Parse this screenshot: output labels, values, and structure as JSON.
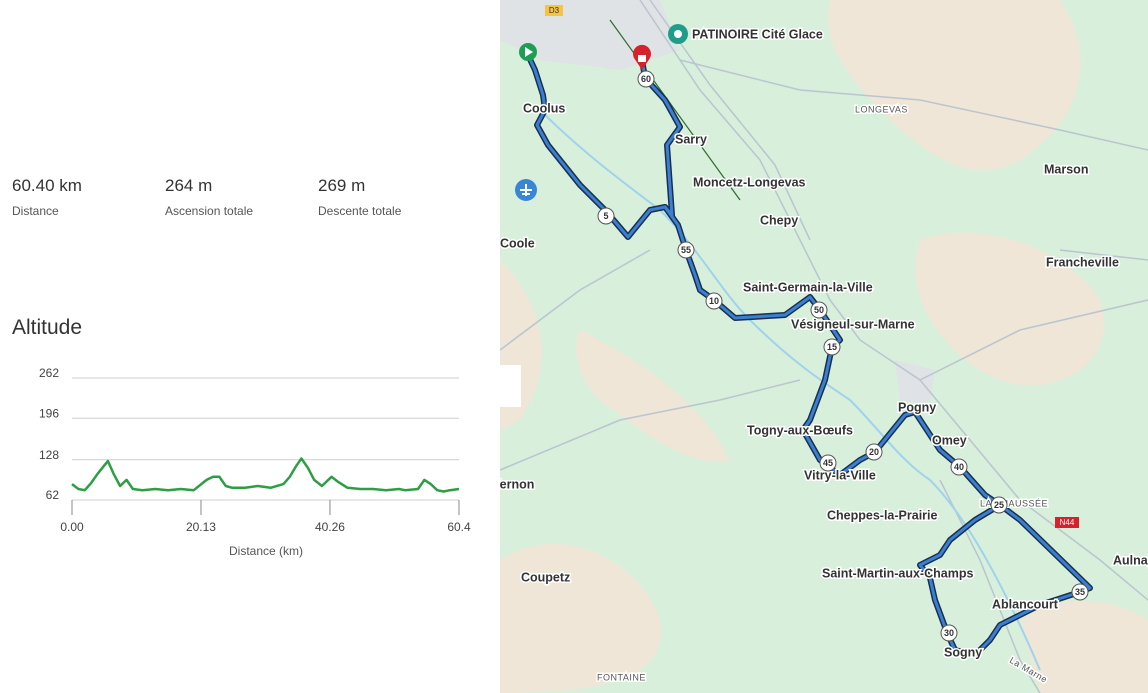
{
  "stats": [
    {
      "value": "60.40 km",
      "label": "Distance"
    },
    {
      "value": "264 m",
      "label": "Ascension totale"
    },
    {
      "value": "269 m",
      "label": "Descente totale"
    }
  ],
  "chart_data": {
    "type": "line",
    "title": "Altitude",
    "x_label": "Distance (km)",
    "color": "#2e9e44",
    "x": [
      0,
      1,
      2,
      3,
      4,
      5,
      5.6,
      6.5,
      7.5,
      8.5,
      9.5,
      11,
      13,
      15,
      17,
      19,
      21,
      22,
      23,
      24,
      25,
      27,
      29,
      31,
      33,
      34,
      35,
      35.8,
      36.8,
      37.8,
      39,
      40.5,
      41.5,
      43,
      45,
      47,
      49,
      51,
      52,
      54,
      55,
      56,
      57,
      58,
      59,
      60.4
    ],
    "values": [
      88,
      80,
      78,
      90,
      105,
      118,
      126,
      105,
      85,
      95,
      80,
      78,
      80,
      78,
      80,
      78,
      95,
      100,
      100,
      85,
      82,
      82,
      85,
      82,
      88,
      100,
      118,
      130,
      115,
      95,
      85,
      100,
      92,
      82,
      80,
      80,
      78,
      80,
      78,
      80,
      95,
      88,
      78,
      76,
      78,
      80
    ],
    "xlim": [
      0,
      60.4
    ],
    "xticks": [
      {
        "value": 0,
        "label": "0.00"
      },
      20.13,
      40.26,
      60.4
    ],
    "ylim": [
      62,
      262
    ],
    "yticks": [
      62,
      128,
      196,
      262
    ],
    "grid": true
  },
  "map": {
    "places": [
      "PATINOIRE Cité Glace",
      "LONGEVAS",
      "Marson",
      "Sarry",
      "Moncetz-Longevas",
      "Chepy",
      "Coolus",
      "Coole",
      "Francheville",
      "Saint-Germain-la-Ville",
      "Vésigneul-sur-Marne",
      "Pogny",
      "Omey",
      "Togny-aux-Bœufs",
      "Vitry-la-Ville",
      "LA CHAUSSÉE",
      "Cheppes-la-Prairie",
      "Saint-Martin-aux-Champs",
      "Ablancourt",
      "Sogny",
      "Aulnay",
      "Coupetz",
      "FONTAINE",
      "Vernon",
      "La Marne",
      "D3",
      "N44"
    ],
    "route_markers": [
      60,
      55,
      5,
      10,
      50,
      15,
      20,
      45,
      40,
      25,
      35,
      30
    ]
  }
}
